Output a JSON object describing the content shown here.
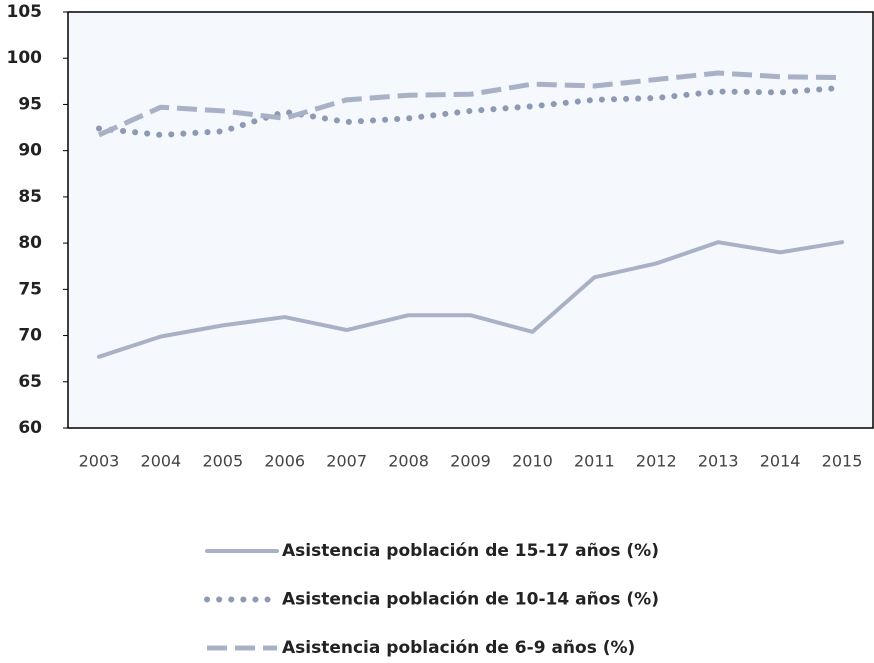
{
  "chart_data": {
    "type": "line",
    "categories": [
      "2003",
      "2004",
      "2005",
      "2006",
      "2007",
      "2008",
      "2009",
      "2010",
      "2011",
      "2012",
      "2013",
      "2014",
      "2015"
    ],
    "series": [
      {
        "name": "Asistencia población de 15-17 años (%)",
        "color": "#a9b1c6",
        "style": "solid",
        "values": [
          67.7,
          69.9,
          71.1,
          72.0,
          70.6,
          72.2,
          72.2,
          70.4,
          76.3,
          77.8,
          80.1,
          79.0,
          80.1
        ]
      },
      {
        "name": "Asistencia población de 10-14 años (%)",
        "color": "#8e9ab4",
        "style": "dotted",
        "values": [
          92.4,
          91.7,
          92.1,
          94.2,
          93.1,
          93.5,
          94.3,
          94.8,
          95.5,
          95.7,
          96.4,
          96.3,
          96.8
        ]
      },
      {
        "name": "Asistencia población de 6-9 años (%)",
        "color": "#a9b1c6",
        "style": "dashed",
        "values": [
          91.7,
          94.7,
          94.3,
          93.5,
          95.5,
          96.0,
          96.1,
          97.2,
          97.0,
          97.7,
          98.4,
          98.0,
          97.9
        ]
      }
    ],
    "ylim": [
      60,
      105
    ],
    "yticks": [
      60,
      65,
      70,
      75,
      80,
      85,
      90,
      95,
      100,
      105
    ],
    "background": "#f5f8fc"
  }
}
